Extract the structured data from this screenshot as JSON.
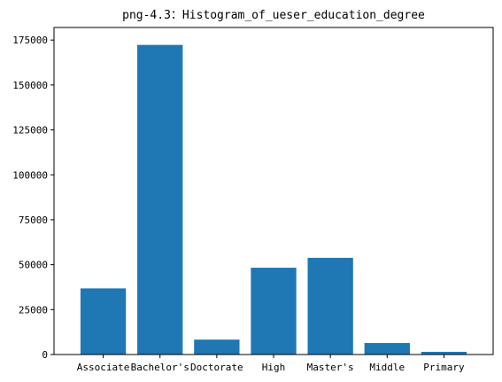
{
  "chart_data": {
    "type": "bar",
    "title": "png-4.3：Histogram_of_ueser_education_degree",
    "xlabel": "",
    "ylabel": "",
    "categories": [
      "Associate",
      "Bachelor's",
      "Doctorate",
      "High",
      "Master's",
      "Middle",
      "Primary"
    ],
    "values": [
      36800,
      172300,
      8300,
      48300,
      53800,
      6400,
      1500
    ],
    "ylim": [
      0,
      182000
    ],
    "yticks": [
      0,
      25000,
      50000,
      75000,
      100000,
      125000,
      150000,
      175000
    ],
    "bar_color": "#1f77b4",
    "grid": false,
    "legend": "none"
  }
}
